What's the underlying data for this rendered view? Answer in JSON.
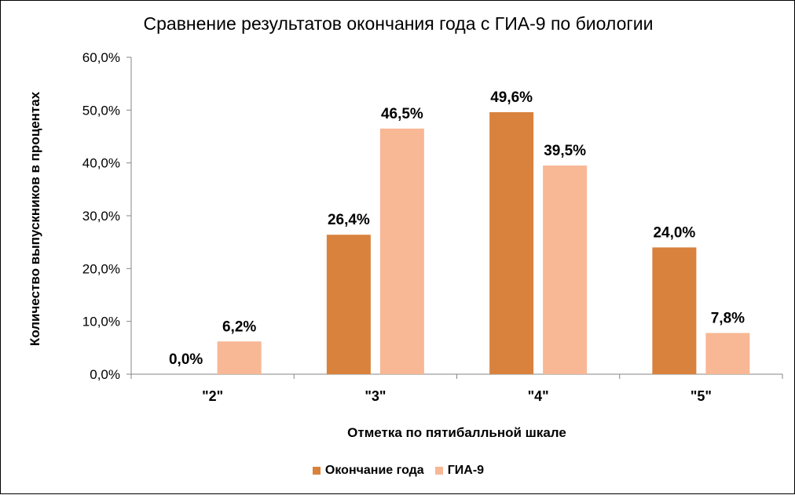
{
  "chart_data": {
    "type": "bar",
    "title": "Сравнение результатов окончания года с ГИА-9  по биологии",
    "xlabel": "Отметка по пятибалльной шкале",
    "ylabel": "Количество выпускников в процентах",
    "categories": [
      "\"2\"",
      "\"3\"",
      "\"4\"",
      "\"5\""
    ],
    "series": [
      {
        "name": "Окончание года",
        "color": "#D9823E",
        "values": [
          0.0,
          26.4,
          49.6,
          24.0
        ],
        "labels": [
          "0,0%",
          "26,4%",
          "49,6%",
          "24,0%"
        ]
      },
      {
        "name": "ГИА-9",
        "color": "#F8B795",
        "values": [
          6.2,
          46.5,
          39.5,
          7.8
        ],
        "labels": [
          "6,2%",
          "46,5%",
          "39,5%",
          "7,8%"
        ]
      }
    ],
    "ylim": [
      0,
      60
    ],
    "yticks": [
      0,
      10,
      20,
      30,
      40,
      50,
      60
    ],
    "ytick_labels": [
      "0,0%",
      "10,0%",
      "20,0%",
      "30,0%",
      "40,0%",
      "50,0%",
      "60,0%"
    ],
    "grid": false,
    "legend_position": "bottom"
  }
}
